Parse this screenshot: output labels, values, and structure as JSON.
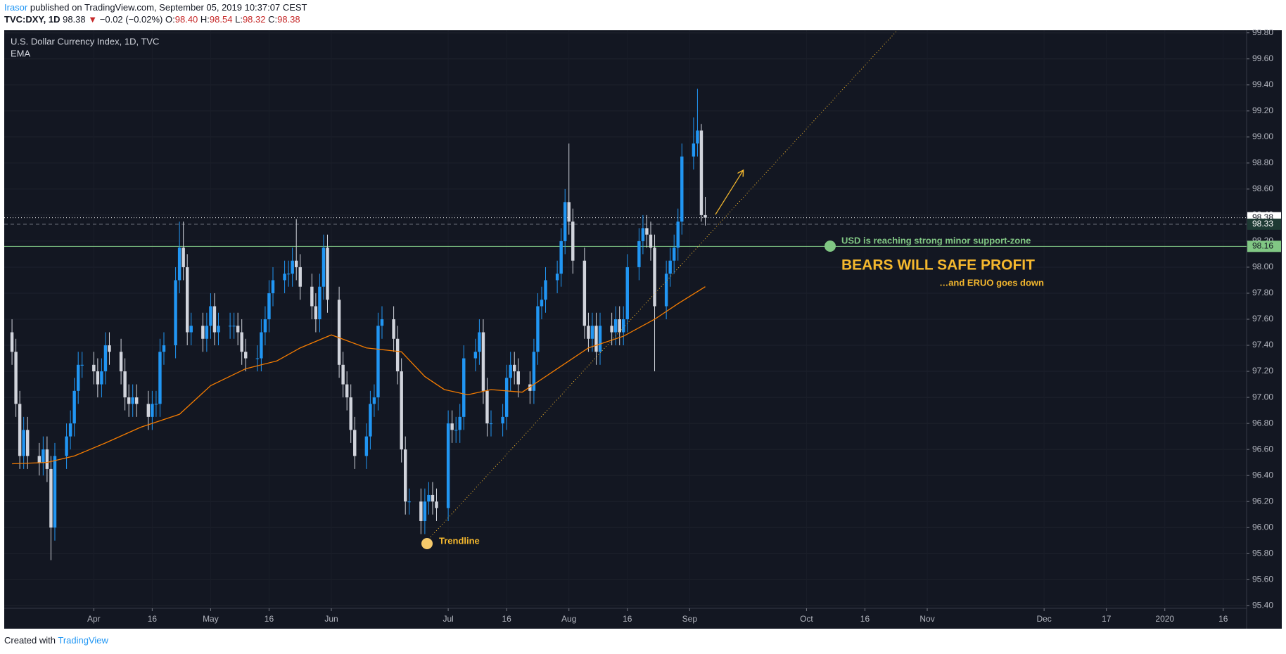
{
  "header": {
    "author": "Irasor",
    "published": "published on TradingView.com, September 05, 2019 10:37:07 CEST",
    "symbol": "TVC:DXY, 1D",
    "last": "98.38",
    "arrow": "▼",
    "change": "−0.02 (−0.02%)",
    "o_label": "O:",
    "o": "98.40",
    "h_label": "H:",
    "h": "98.54",
    "l_label": "L:",
    "l": "98.32",
    "c_label": "C:",
    "c": "98.38"
  },
  "footer": {
    "text": "Created with",
    "brand": "TradingView"
  },
  "chart_data": {
    "type": "candlestick",
    "title": "U.S. Dollar Currency Index, 1D, TVC",
    "indicator": "EMA",
    "up_color": "#2196f3",
    "down_color": "#d1d4dc",
    "x": [
      70,
      71,
      72,
      73,
      74,
      77,
      78,
      79,
      80,
      81,
      84,
      85,
      86,
      87,
      88,
      91,
      92,
      93,
      94,
      95,
      98,
      99,
      100,
      101,
      102,
      105,
      106,
      107,
      108,
      109,
      112,
      113,
      114,
      115,
      116,
      119,
      120,
      121,
      122,
      123,
      126,
      127,
      128,
      129,
      130,
      133,
      134,
      135,
      136,
      137,
      140,
      141,
      142,
      143,
      144,
      147,
      148,
      149,
      150,
      151,
      154,
      155,
      156,
      157,
      158,
      161,
      162,
      163,
      164,
      165,
      168,
      169,
      170,
      171,
      172,
      175,
      176,
      177,
      178,
      179,
      182,
      183,
      184,
      185,
      186,
      189,
      190,
      191,
      192,
      193,
      196,
      197,
      198,
      199,
      200,
      203,
      204,
      205,
      206,
      207,
      210,
      211,
      212,
      213,
      214,
      217,
      218,
      219,
      220,
      221,
      224,
      225,
      226,
      227,
      228,
      231,
      232,
      233,
      234,
      235,
      238,
      239,
      240,
      241,
      242,
      245,
      246,
      247,
      248
    ],
    "open": [
      97.5,
      97.35,
      96.95,
      96.55,
      96.75,
      96.55,
      96.5,
      96.6,
      96.45,
      96.0,
      96.55,
      96.7,
      96.8,
      97.05,
      97.25,
      97.25,
      97.2,
      97.1,
      97.2,
      97.4,
      97.35,
      97.2,
      97.0,
      96.95,
      97.0,
      96.95,
      96.85,
      96.95,
      96.95,
      97.35,
      97.4,
      97.9,
      98.15,
      98.0,
      97.5,
      97.55,
      97.45,
      97.55,
      97.7,
      97.5,
      97.55,
      97.55,
      97.55,
      97.5,
      97.35,
      97.3,
      97.3,
      97.5,
      97.6,
      97.8,
      97.9,
      97.95,
      97.95,
      98.05,
      98.0,
      97.85,
      97.7,
      97.6,
      97.85,
      98.15,
      97.75,
      97.25,
      97.1,
      97.0,
      96.75,
      96.55,
      96.7,
      96.95,
      97.0,
      97.55,
      97.6,
      97.45,
      97.2,
      96.6,
      96.2,
      96.2,
      96.05,
      96.2,
      96.25,
      96.2,
      96.15,
      96.8,
      96.75,
      96.75,
      96.85,
      97.3,
      97.35,
      97.5,
      97.05,
      96.8,
      96.8,
      96.85,
      97.15,
      97.25,
      97.2,
      97.1,
      97.05,
      97.35,
      97.7,
      97.75,
      97.9,
      97.95,
      98.2,
      98.5,
      98.35,
      98.05,
      97.55,
      97.45,
      97.55,
      97.35,
      97.55,
      97.5,
      97.6,
      97.5,
      97.6,
      98.0,
      98.2,
      98.3,
      98.25,
      98.15,
      97.7,
      97.95,
      98.05,
      98.15,
      98.35,
      98.85,
      98.95,
      99.05,
      98.4
    ],
    "high": [
      97.6,
      97.45,
      97.05,
      96.85,
      96.85,
      96.65,
      96.7,
      96.7,
      96.55,
      96.65,
      96.8,
      96.9,
      97.15,
      97.35,
      97.35,
      97.35,
      97.3,
      97.3,
      97.5,
      97.5,
      97.45,
      97.3,
      97.1,
      97.1,
      97.1,
      97.05,
      97.05,
      97.05,
      97.45,
      97.5,
      98.0,
      98.35,
      98.35,
      98.1,
      97.65,
      97.65,
      97.65,
      97.8,
      97.8,
      97.65,
      97.65,
      97.65,
      97.65,
      97.6,
      97.45,
      97.4,
      97.6,
      97.7,
      97.9,
      98.0,
      98.05,
      98.05,
      98.15,
      98.37,
      98.1,
      97.95,
      97.8,
      97.95,
      98.25,
      98.25,
      97.85,
      97.35,
      97.2,
      97.1,
      96.85,
      96.8,
      97.05,
      97.1,
      97.65,
      97.7,
      97.7,
      97.55,
      97.3,
      96.7,
      96.3,
      96.3,
      96.3,
      96.35,
      96.35,
      96.3,
      96.9,
      96.9,
      96.85,
      96.95,
      97.4,
      97.45,
      97.6,
      97.6,
      97.15,
      96.9,
      96.95,
      97.25,
      97.35,
      97.35,
      97.3,
      97.2,
      97.45,
      97.8,
      97.85,
      98.0,
      98.05,
      98.3,
      98.6,
      98.95,
      98.45,
      98.15,
      97.65,
      97.65,
      97.65,
      97.65,
      97.65,
      97.7,
      97.7,
      97.7,
      98.1,
      98.3,
      98.4,
      98.4,
      98.35,
      98.25,
      98.05,
      98.15,
      98.25,
      98.45,
      98.95,
      99.15,
      99.37,
      99.1,
      98.54
    ],
    "low": [
      97.25,
      96.85,
      96.45,
      96.45,
      96.45,
      96.4,
      96.4,
      96.35,
      95.75,
      95.9,
      96.45,
      96.6,
      96.7,
      96.95,
      97.15,
      97.1,
      97.0,
      97.0,
      97.1,
      97.25,
      97.1,
      96.9,
      96.85,
      96.85,
      96.85,
      96.75,
      96.75,
      96.85,
      96.85,
      97.25,
      97.3,
      97.8,
      97.9,
      97.4,
      97.4,
      97.35,
      97.35,
      97.45,
      97.4,
      97.4,
      97.45,
      97.45,
      97.4,
      97.25,
      97.2,
      97.2,
      97.2,
      97.4,
      97.5,
      97.7,
      97.8,
      97.85,
      97.85,
      97.9,
      97.75,
      97.6,
      97.5,
      97.5,
      97.75,
      97.65,
      97.15,
      97.0,
      96.9,
      96.65,
      96.45,
      96.45,
      96.6,
      96.85,
      96.9,
      97.45,
      97.35,
      97.1,
      96.5,
      96.1,
      96.1,
      95.95,
      95.95,
      96.1,
      96.1,
      96.05,
      96.05,
      96.65,
      96.65,
      96.65,
      96.75,
      97.2,
      97.25,
      96.95,
      96.7,
      96.7,
      96.7,
      96.75,
      97.05,
      97.1,
      97.0,
      96.95,
      96.95,
      97.25,
      97.6,
      97.65,
      97.8,
      97.85,
      98.1,
      98.25,
      97.95,
      97.45,
      97.35,
      97.35,
      97.25,
      97.25,
      97.4,
      97.4,
      97.4,
      97.4,
      97.5,
      97.9,
      98.1,
      98.15,
      98.05,
      97.2,
      97.6,
      97.85,
      97.95,
      98.05,
      98.25,
      98.75,
      98.85,
      98.35,
      98.32
    ],
    "close": [
      97.35,
      96.95,
      96.55,
      96.75,
      96.55,
      96.5,
      96.6,
      96.45,
      96.0,
      96.55,
      96.7,
      96.8,
      97.05,
      97.25,
      97.25,
      97.2,
      97.1,
      97.2,
      97.4,
      97.35,
      97.2,
      97.0,
      96.95,
      97.0,
      96.95,
      96.85,
      96.95,
      96.95,
      97.35,
      97.4,
      97.9,
      98.15,
      98.0,
      97.5,
      97.55,
      97.45,
      97.55,
      97.7,
      97.5,
      97.55,
      97.55,
      97.55,
      97.5,
      97.35,
      97.3,
      97.3,
      97.5,
      97.6,
      97.8,
      97.9,
      97.95,
      97.95,
      98.05,
      98.0,
      97.85,
      97.7,
      97.6,
      97.85,
      98.15,
      97.75,
      97.25,
      97.1,
      97.0,
      96.75,
      96.55,
      96.7,
      96.95,
      97.0,
      97.55,
      97.6,
      97.45,
      97.2,
      96.6,
      96.2,
      96.2,
      96.05,
      96.2,
      96.25,
      96.2,
      96.15,
      96.8,
      96.75,
      96.75,
      96.85,
      97.3,
      97.35,
      97.5,
      97.05,
      96.8,
      96.8,
      96.85,
      97.15,
      97.25,
      97.2,
      97.1,
      97.05,
      97.35,
      97.7,
      97.75,
      97.9,
      97.95,
      98.2,
      98.5,
      98.35,
      98.05,
      97.55,
      97.45,
      97.55,
      97.35,
      97.55,
      97.5,
      97.6,
      97.5,
      97.6,
      98.0,
      98.2,
      98.3,
      98.25,
      98.15,
      97.7,
      97.95,
      98.05,
      98.15,
      98.35,
      98.85,
      98.95,
      99.05,
      98.4,
      98.38
    ],
    "ema": {
      "name": "EMA",
      "color": "#f57c00",
      "x": [
        70,
        79,
        86,
        94,
        103,
        113,
        121,
        130,
        138,
        144,
        152,
        161,
        170,
        176,
        181,
        187,
        193,
        201,
        210,
        218,
        227,
        235,
        241,
        248
      ],
      "values": [
        96.49,
        96.5,
        96.55,
        96.65,
        96.77,
        96.87,
        97.09,
        97.22,
        97.28,
        97.38,
        97.48,
        97.38,
        97.35,
        97.16,
        97.06,
        97.02,
        97.06,
        97.04,
        97.22,
        97.38,
        97.47,
        97.6,
        97.72,
        97.85
      ]
    },
    "trendline": {
      "color": "#f5b82e",
      "x": [
        176,
        297
      ],
      "values": [
        95.88,
        99.81
      ]
    },
    "price_lines": [
      {
        "value": 98.38,
        "color": "#ffffff",
        "style": "dotted"
      },
      {
        "value": 98.33,
        "color": "#787b86",
        "style": "dashed"
      },
      {
        "value": 98.16,
        "color": "#81c784",
        "style": "solid"
      }
    ],
    "annotations": [
      "Trendline",
      "USD is reaching strong minor support-zone",
      "BEARS WILL SAFE PROFIT",
      "…and ERUO goes down"
    ],
    "xlim": [
      68,
      387
    ],
    "ylim": [
      95.38,
      99.82
    ],
    "xticks": [
      {
        "value": 91,
        "label": "Apr"
      },
      {
        "value": 106,
        "label": "16"
      },
      {
        "value": 121,
        "label": "May"
      },
      {
        "value": 136,
        "label": "16"
      },
      {
        "value": 152,
        "label": "Jun"
      },
      {
        "value": 182,
        "label": "Jul"
      },
      {
        "value": 197,
        "label": "16"
      },
      {
        "value": 213,
        "label": "Aug"
      },
      {
        "value": 228,
        "label": "16"
      },
      {
        "value": 244,
        "label": "Sep"
      },
      {
        "value": 274,
        "label": "Oct"
      },
      {
        "value": 289,
        "label": "16"
      },
      {
        "value": 305,
        "label": "Nov"
      },
      {
        "value": 335,
        "label": "Dec"
      },
      {
        "value": 351,
        "label": "17"
      },
      {
        "value": 366,
        "label": "2020"
      },
      {
        "value": 381,
        "label": "16"
      }
    ],
    "yticks": [
      {
        "value": 95.4,
        "label": "95.40"
      },
      {
        "value": 95.6,
        "label": "95.60"
      },
      {
        "value": 95.8,
        "label": "95.80"
      },
      {
        "value": 96.0,
        "label": "96.00"
      },
      {
        "value": 96.2,
        "label": "96.20"
      },
      {
        "value": 96.4,
        "label": "96.40"
      },
      {
        "value": 96.6,
        "label": "96.60"
      },
      {
        "value": 96.8,
        "label": "96.80"
      },
      {
        "value": 97.0,
        "label": "97.00"
      },
      {
        "value": 97.2,
        "label": "97.20"
      },
      {
        "value": 97.4,
        "label": "97.40"
      },
      {
        "value": 97.6,
        "label": "97.60"
      },
      {
        "value": 97.8,
        "label": "97.80"
      },
      {
        "value": 98.0,
        "label": "98.00"
      },
      {
        "value": 98.2,
        "label": "98.20"
      },
      {
        "value": 98.4,
        "label": "98.40"
      },
      {
        "value": 98.6,
        "label": "98.60"
      },
      {
        "value": 98.8,
        "label": "98.80"
      },
      {
        "value": 99.0,
        "label": "99.00"
      },
      {
        "value": 99.2,
        "label": "99.20"
      },
      {
        "value": 99.4,
        "label": "99.40"
      },
      {
        "value": 99.6,
        "label": "99.60"
      },
      {
        "value": 99.8,
        "label": "99.80"
      }
    ]
  }
}
